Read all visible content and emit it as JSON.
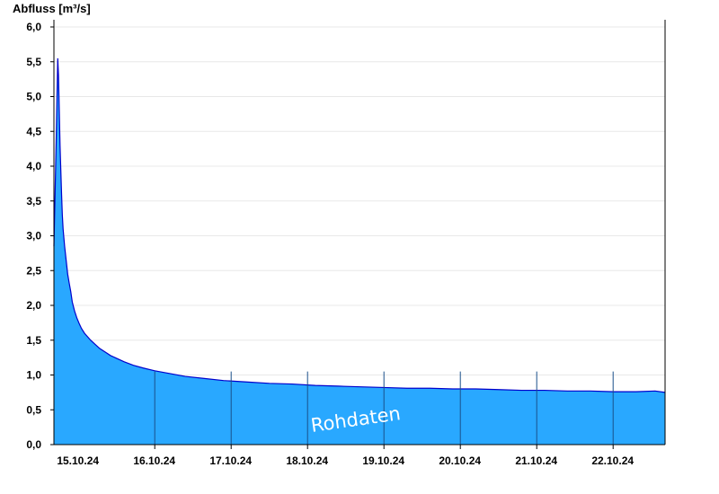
{
  "chart_data": {
    "type": "area",
    "title": "",
    "ylabel": "Abfluss [m³/s]",
    "xlabel": "",
    "ylim": [
      0,
      6.0
    ],
    "yticks": [
      "0,0",
      "0,5",
      "1,0",
      "1,5",
      "2,0",
      "2,5",
      "3,0",
      "3,5",
      "4,0",
      "4,5",
      "5,0",
      "5,5",
      "6,0"
    ],
    "xticks": [
      "15.10.24",
      "16.10.24",
      "17.10.24",
      "18.10.24",
      "19.10.24",
      "20.10.24",
      "21.10.24",
      "22.10.24"
    ],
    "xrange_days": [
      14.68,
      22.68
    ],
    "grid": true,
    "watermark": "Rohdaten",
    "colors": {
      "fill": "#29a8ff",
      "line": "#0000cc",
      "grid": "#e8e8e8"
    },
    "series": [
      {
        "x": [
          14.68,
          14.695,
          14.71,
          14.72,
          14.73,
          14.74,
          14.75,
          14.76,
          14.77,
          14.78,
          14.79,
          14.8,
          14.82,
          14.84,
          14.86,
          14.88,
          14.9,
          14.92,
          14.95,
          14.98,
          15.01,
          15.04,
          15.08,
          15.12,
          15.16,
          15.22,
          15.28,
          15.35,
          15.42,
          15.5,
          15.6,
          15.72,
          15.85,
          16.0,
          16.2,
          16.4,
          16.65,
          16.9,
          17.2,
          17.5,
          17.8,
          18.1,
          18.4,
          18.7,
          19.0,
          19.3,
          19.6,
          19.9,
          20.2,
          20.5,
          20.8,
          21.1,
          21.4,
          21.7,
          22.0,
          22.3,
          22.55,
          22.68
        ],
        "y": [
          2.85,
          3.6,
          4.4,
          5.0,
          5.55,
          5.3,
          4.8,
          4.3,
          3.95,
          3.6,
          3.3,
          3.1,
          2.85,
          2.65,
          2.45,
          2.32,
          2.2,
          2.05,
          1.92,
          1.82,
          1.74,
          1.67,
          1.6,
          1.55,
          1.5,
          1.44,
          1.38,
          1.33,
          1.28,
          1.24,
          1.19,
          1.14,
          1.1,
          1.06,
          1.02,
          0.98,
          0.95,
          0.92,
          0.9,
          0.88,
          0.87,
          0.85,
          0.84,
          0.83,
          0.82,
          0.81,
          0.81,
          0.8,
          0.8,
          0.79,
          0.78,
          0.78,
          0.77,
          0.77,
          0.76,
          0.76,
          0.77,
          0.75
        ]
      }
    ]
  }
}
